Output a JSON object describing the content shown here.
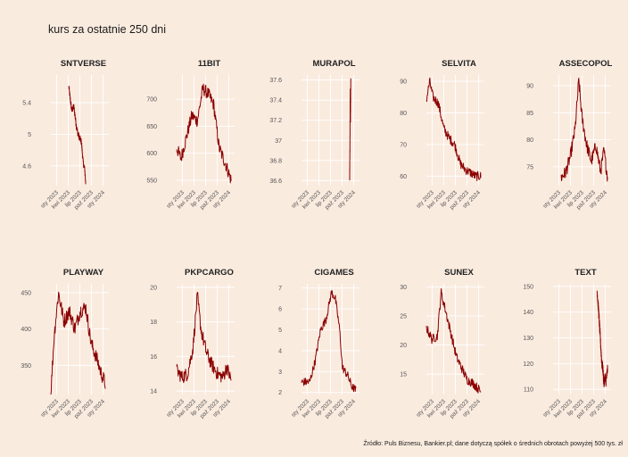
{
  "title": "kurs za ostatnie 250 dni",
  "caption": "Źródło: Puls Biznesu, Bankier.pl; dane dotyczą spółek o średnich obrotach powyżej 500 tys. zł",
  "colors": {
    "background": "#FAEBDF",
    "line": "#8B0000",
    "grid": "#FFFFFF"
  },
  "chart_data": [
    {
      "type": "line",
      "title": "SNTVERSE",
      "xticks": [
        "sty 2023",
        "kwi 2023",
        "lip 2023",
        "paź 2023",
        "sty 2024"
      ],
      "xrange": [
        0,
        5
      ],
      "start": 1.55,
      "end": 3.0,
      "ylim": [
        4.35,
        5.75
      ],
      "yticks": [
        4.6,
        5.0,
        5.4
      ],
      "keypoints": [
        [
          0,
          5.6
        ],
        [
          0.08,
          5.45
        ],
        [
          0.18,
          5.3
        ],
        [
          0.3,
          5.35
        ],
        [
          0.45,
          5.1
        ],
        [
          0.55,
          5.0
        ],
        [
          0.65,
          4.95
        ],
        [
          0.75,
          4.9
        ],
        [
          0.85,
          4.65
        ],
        [
          0.95,
          4.55
        ],
        [
          1,
          4.38
        ]
      ],
      "noise": 0.04
    },
    {
      "type": "line",
      "title": "11BIT",
      "xticks": [
        "sty 2023",
        "kwi 2023",
        "lip 2023",
        "paź 2023",
        "sty 2024"
      ],
      "xrange": [
        0,
        5
      ],
      "start": 0,
      "end": 4.7,
      "ylim": [
        540,
        745
      ],
      "yticks": [
        550,
        600,
        650,
        700
      ],
      "keypoints": [
        [
          0,
          610
        ],
        [
          0.08,
          590
        ],
        [
          0.18,
          630
        ],
        [
          0.28,
          670
        ],
        [
          0.38,
          660
        ],
        [
          0.48,
          720
        ],
        [
          0.58,
          710
        ],
        [
          0.68,
          690
        ],
        [
          0.78,
          610
        ],
        [
          0.9,
          580
        ],
        [
          1,
          550
        ]
      ],
      "noise": 12
    },
    {
      "type": "line",
      "title": "MURAPOL",
      "xticks": [
        "sty 2023",
        "kwi 2023",
        "lip 2023",
        "paź 2023",
        "sty 2024"
      ],
      "xrange": [
        0,
        5
      ],
      "start": 4.15,
      "end": 4.25,
      "ylim": [
        36.55,
        37.65
      ],
      "yticks": [
        36.6,
        36.8,
        37.0,
        37.2,
        37.4,
        37.6
      ],
      "keypoints": [
        [
          0,
          36.6
        ],
        [
          0.3,
          37.0
        ],
        [
          0.5,
          37.5
        ],
        [
          0.7,
          37.2
        ],
        [
          1,
          37.6
        ]
      ],
      "noise": 0.03
    },
    {
      "type": "line",
      "title": "SELVITA",
      "xticks": [
        "sty 2023",
        "kwi 2023",
        "lip 2023",
        "paź 2023",
        "sty 2024"
      ],
      "xrange": [
        0,
        5
      ],
      "start": 0,
      "end": 4.7,
      "ylim": [
        57,
        92
      ],
      "yticks": [
        60,
        70,
        80,
        90
      ],
      "keypoints": [
        [
          0,
          84
        ],
        [
          0.06,
          90
        ],
        [
          0.12,
          85
        ],
        [
          0.22,
          83
        ],
        [
          0.32,
          75
        ],
        [
          0.42,
          72
        ],
        [
          0.52,
          70
        ],
        [
          0.62,
          64
        ],
        [
          0.72,
          62
        ],
        [
          0.82,
          61
        ],
        [
          0.9,
          60
        ],
        [
          1,
          60
        ]
      ],
      "noise": 1.5
    },
    {
      "type": "line",
      "title": "ASSECOPOL",
      "xticks": [
        "sty 2023",
        "kwi 2023",
        "lip 2023",
        "paź 2023",
        "sty 2024"
      ],
      "xrange": [
        0,
        5
      ],
      "start": 0.7,
      "end": 4.7,
      "ylim": [
        71.5,
        92
      ],
      "yticks": [
        75,
        80,
        85,
        90
      ],
      "keypoints": [
        [
          0,
          73
        ],
        [
          0.1,
          74
        ],
        [
          0.2,
          77
        ],
        [
          0.3,
          82
        ],
        [
          0.38,
          91
        ],
        [
          0.45,
          84
        ],
        [
          0.55,
          79
        ],
        [
          0.65,
          76
        ],
        [
          0.75,
          79
        ],
        [
          0.85,
          74
        ],
        [
          0.92,
          78
        ],
        [
          1,
          73
        ]
      ],
      "noise": 1.2
    },
    {
      "type": "line",
      "title": "PLAYWAY",
      "xticks": [
        "sty 2023",
        "kwi 2023",
        "lip 2023",
        "paź 2023",
        "sty 2024"
      ],
      "xrange": [
        0,
        5
      ],
      "start": 0,
      "end": 4.7,
      "ylim": [
        310,
        462
      ],
      "yticks": [
        350,
        400,
        450
      ],
      "keypoints": [
        [
          0,
          312
        ],
        [
          0.06,
          390
        ],
        [
          0.14,
          450
        ],
        [
          0.24,
          410
        ],
        [
          0.34,
          425
        ],
        [
          0.44,
          400
        ],
        [
          0.54,
          425
        ],
        [
          0.64,
          430
        ],
        [
          0.74,
          380
        ],
        [
          0.84,
          360
        ],
        [
          0.92,
          340
        ],
        [
          1,
          325
        ]
      ],
      "noise": 10
    },
    {
      "type": "line",
      "title": "PKPCARGO",
      "xticks": [
        "sty 2023",
        "kwi 2023",
        "lip 2023",
        "paź 2023",
        "sty 2024"
      ],
      "xrange": [
        0,
        5
      ],
      "start": 0,
      "end": 4.7,
      "ylim": [
        13.8,
        20.2
      ],
      "yticks": [
        14,
        16,
        18,
        20
      ],
      "keypoints": [
        [
          0,
          15.2
        ],
        [
          0.1,
          14.8
        ],
        [
          0.2,
          15.0
        ],
        [
          0.3,
          16.5
        ],
        [
          0.38,
          19.5
        ],
        [
          0.45,
          17.5
        ],
        [
          0.55,
          16.2
        ],
        [
          0.65,
          15.5
        ],
        [
          0.75,
          15.0
        ],
        [
          0.85,
          14.8
        ],
        [
          0.92,
          15.4
        ],
        [
          1,
          14.6
        ]
      ],
      "noise": 0.4
    },
    {
      "type": "line",
      "title": "CIGAMES",
      "xticks": [
        "sty 2023",
        "kwi 2023",
        "lip 2023",
        "paź 2023",
        "sty 2024"
      ],
      "xrange": [
        0,
        5
      ],
      "start": 0,
      "end": 4.7,
      "ylim": [
        1.9,
        7.2
      ],
      "yticks": [
        2,
        3,
        4,
        5,
        6,
        7
      ],
      "keypoints": [
        [
          0,
          2.5
        ],
        [
          0.15,
          2.5
        ],
        [
          0.25,
          3.5
        ],
        [
          0.35,
          5.0
        ],
        [
          0.45,
          5.5
        ],
        [
          0.55,
          6.8
        ],
        [
          0.62,
          6.5
        ],
        [
          0.7,
          5.0
        ],
        [
          0.75,
          3.2
        ],
        [
          0.85,
          2.8
        ],
        [
          0.92,
          2.3
        ],
        [
          1,
          2.1
        ]
      ],
      "noise": 0.2
    },
    {
      "type": "line",
      "title": "SUNEX",
      "xticks": [
        "sty 2023",
        "kwi 2023",
        "lip 2023",
        "paź 2023",
        "sty 2024"
      ],
      "xrange": [
        0,
        5
      ],
      "start": 0,
      "end": 4.7,
      "ylim": [
        11.5,
        30.5
      ],
      "yticks": [
        15,
        20,
        25,
        30
      ],
      "keypoints": [
        [
          0,
          23
        ],
        [
          0.1,
          21
        ],
        [
          0.2,
          21.5
        ],
        [
          0.27,
          29
        ],
        [
          0.35,
          26
        ],
        [
          0.45,
          22
        ],
        [
          0.55,
          18
        ],
        [
          0.65,
          16
        ],
        [
          0.75,
          14
        ],
        [
          0.85,
          13.5
        ],
        [
          1,
          12
        ]
      ],
      "noise": 0.8
    },
    {
      "type": "line",
      "title": "TEXT",
      "xticks": [
        "sty 2023",
        "kwi 2023",
        "lip 2023",
        "paź 2023",
        "sty 2024"
      ],
      "xrange": [
        0,
        5
      ],
      "start": 3.8,
      "end": 4.7,
      "ylim": [
        108,
        151
      ],
      "yticks": [
        110,
        120,
        130,
        140,
        150
      ],
      "keypoints": [
        [
          0,
          148
        ],
        [
          0.15,
          140
        ],
        [
          0.3,
          130
        ],
        [
          0.45,
          120
        ],
        [
          0.55,
          118
        ],
        [
          0.65,
          112
        ],
        [
          0.75,
          115
        ],
        [
          0.85,
          113
        ],
        [
          1,
          118
        ]
      ],
      "noise": 2
    }
  ]
}
